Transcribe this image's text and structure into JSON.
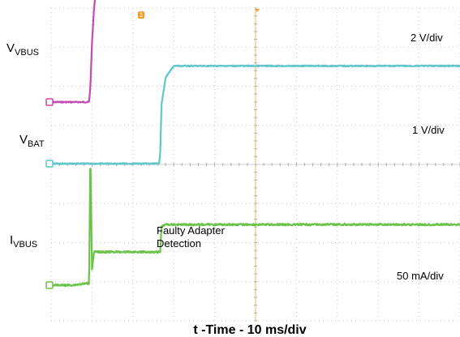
{
  "chart_data": {
    "type": "line",
    "xlabel": "t -Time - 10 ms/div",
    "x_div_ms": 10,
    "x_divisions": 10,
    "y_divisions": 8,
    "grid": true,
    "time_ms": [
      0,
      5,
      9.3,
      9.6,
      10,
      10.5,
      11,
      14,
      20,
      24,
      26.4,
      26.7,
      27,
      28,
      30,
      40,
      50
    ],
    "series": [
      {
        "name": "VVBUS",
        "label_main": "V",
        "label_sub": "VBUS",
        "scale": "2 V/div",
        "color": "#c44bb0",
        "values_div": [
          0,
          0,
          0,
          0.4,
          1.5,
          2.4,
          2.9,
          2.95,
          2.95,
          2.95,
          2.95,
          2.95,
          2.95,
          2.95,
          2.95,
          2.95,
          2.95
        ]
      },
      {
        "name": "VBAT",
        "label_main": "V",
        "label_sub": "BAT",
        "scale": "1 V/div",
        "color": "#5fc6cc",
        "values_div": [
          0,
          0,
          0,
          0,
          0,
          0,
          0,
          0,
          0,
          0,
          0,
          0.3,
          1.5,
          2.2,
          2.5,
          2.5,
          2.5
        ]
      },
      {
        "name": "IVBUS",
        "label_main": "I",
        "label_sub": "VBUS",
        "scale": "50 mA/div",
        "color": "#6cc34a",
        "values_div": [
          0,
          0,
          0.05,
          3.5,
          0.4,
          0.85,
          0.85,
          0.85,
          0.85,
          0.85,
          0.85,
          0.85,
          1.5,
          1.55,
          1.55,
          1.55,
          1.55
        ]
      }
    ],
    "annotation": {
      "line1": "Faulty Adapter",
      "line2": "Detection"
    },
    "top_marker": "1"
  }
}
